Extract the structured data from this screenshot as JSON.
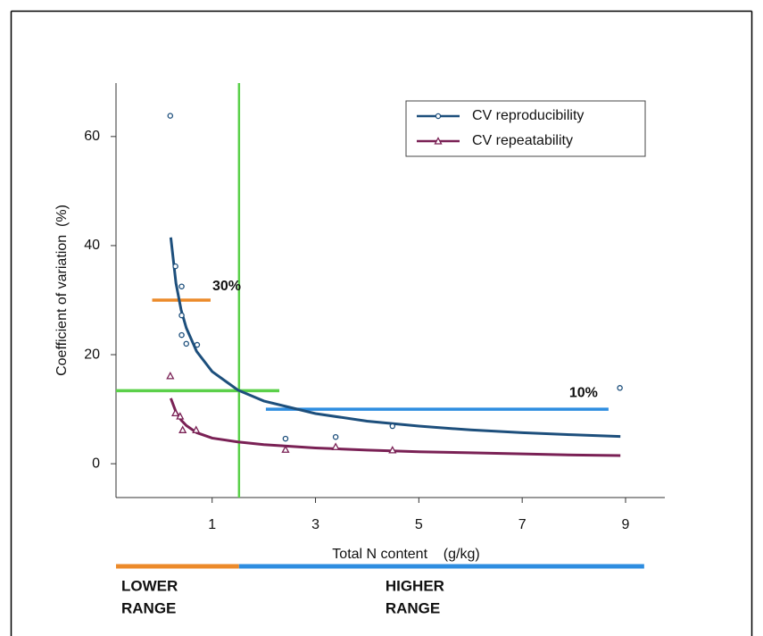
{
  "chart_data": {
    "type": "scatter",
    "x_label": "Total N content    (g/kg)",
    "y_label": "Coefficient of variation  (%)",
    "xlim": [
      -0.86,
      9.76
    ],
    "ylim": [
      -6.2,
      69.8
    ],
    "xticks": [
      1,
      3,
      5,
      7,
      9
    ],
    "yticks": [
      0,
      20,
      40,
      60
    ],
    "grid": false,
    "legend": "top-right",
    "series": [
      {
        "name": "CV reproducibility",
        "color": "#1d4f7c",
        "marker": "circle",
        "x": [
          0.19,
          0.29,
          0.41,
          0.41,
          0.41,
          0.5,
          0.71,
          2.42,
          3.39,
          4.49,
          8.89
        ],
        "values": [
          63.8,
          36.2,
          32.5,
          27.2,
          23.6,
          22,
          21.8,
          4.6,
          4.9,
          6.9,
          13.9
        ],
        "fit_x": [
          0.2,
          0.3,
          0.4,
          0.5,
          0.7,
          1,
          1.5,
          2,
          3,
          4,
          5,
          6,
          7,
          8,
          8.9
        ],
        "fit_values": [
          41.5,
          33.1,
          28.2,
          24.9,
          20.6,
          16.9,
          13.5,
          11.5,
          9.2,
          7.8,
          6.9,
          6.2,
          5.7,
          5.3,
          5.0
        ]
      },
      {
        "name": "CV repeatability",
        "color": "#7a2155",
        "marker": "triangle",
        "x": [
          0.19,
          0.29,
          0.38,
          0.43,
          0.69,
          2.42,
          3.39,
          4.49
        ],
        "values": [
          16.1,
          9.3,
          8.7,
          6.2,
          6.2,
          2.6,
          3.1,
          2.5
        ],
        "fit_x": [
          0.2,
          0.3,
          0.4,
          0.5,
          0.7,
          1,
          1.5,
          2,
          3,
          4,
          5,
          6,
          7,
          8,
          8.9
        ],
        "fit_values": [
          12,
          9.5,
          8,
          7,
          5.7,
          4.7,
          4,
          3.5,
          2.9,
          2.5,
          2.2,
          2,
          1.8,
          1.6,
          1.5
        ]
      }
    ],
    "reference_lines": [
      {
        "axis": "x",
        "value": 1.52,
        "color": "#5bd04a"
      },
      {
        "axis": "y",
        "value": 13.4,
        "from": -0.86,
        "to": 2.3,
        "color": "#5bd04a"
      },
      {
        "axis": "y",
        "value": 30,
        "from": -0.16,
        "to": 0.97,
        "color": "#ec8a2a",
        "label": "30%"
      },
      {
        "axis": "y",
        "value": 10,
        "from": 2.04,
        "to": 8.67,
        "color": "#2e8de0",
        "label": "10%"
      }
    ],
    "ranges": [
      {
        "label": [
          "LOWER",
          "RANGE"
        ],
        "from": -0.86,
        "to": 1.52,
        "color": "#ec8a2a"
      },
      {
        "label": [
          "HIGHER",
          "RANGE"
        ],
        "from": 1.52,
        "to": 9.36,
        "color": "#2e8de0"
      }
    ]
  }
}
